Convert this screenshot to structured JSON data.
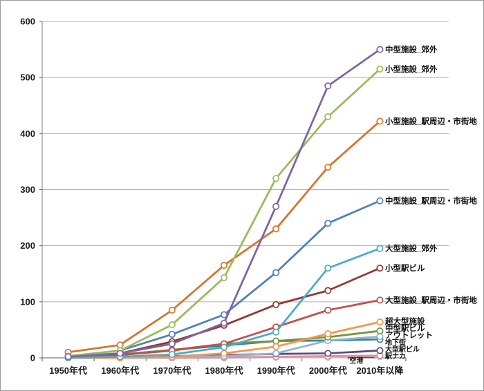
{
  "chart_data": {
    "type": "line",
    "title": "",
    "xlabel": "",
    "ylabel": "",
    "categories": [
      "1950年代",
      "1960年代",
      "1970年代",
      "1980年代",
      "1990年代",
      "2000年代",
      "2010年以降"
    ],
    "y_axis": {
      "min": 0,
      "max": 600,
      "tick_interval": 100,
      "ticks": [
        "0",
        "100",
        "200",
        "300",
        "400",
        "500",
        "600"
      ]
    },
    "grid": true,
    "legend_position": "labels-at-line-ends-right",
    "marker_style": "open-circle",
    "series": [
      {
        "name": "中型施設_郊外",
        "color": "#8064A2",
        "values": [
          2,
          8,
          25,
          62,
          270,
          485,
          550
        ]
      },
      {
        "name": "小型施設_郊外",
        "color": "#9BBB59",
        "values": [
          3,
          13,
          59,
          143,
          320,
          430,
          515
        ]
      },
      {
        "name": "小型施設_駅周辺・市街地",
        "color": "#D4752E",
        "values": [
          10,
          23,
          85,
          165,
          230,
          340,
          422
        ]
      },
      {
        "name": "中型施設_駅周辺・市街地",
        "color": "#4F81BD",
        "values": [
          3,
          13,
          42,
          77,
          152,
          240,
          280
        ]
      },
      {
        "name": "大型施設_郊外",
        "color": "#4BACC6",
        "values": [
          0,
          2,
          6,
          19,
          46,
          160,
          195
        ]
      },
      {
        "name": "小型駅ビル",
        "color": "#943634",
        "values": [
          2,
          8,
          29,
          58,
          95,
          120,
          160
        ]
      },
      {
        "name": "大型施設_駅周辺・市街地",
        "color": "#C0504D",
        "values": [
          1,
          5,
          13,
          25,
          55,
          85,
          103
        ]
      },
      {
        "name": "超大型施設",
        "color": "#F79646",
        "values": [
          0,
          0,
          2,
          8,
          20,
          43,
          64
        ]
      },
      {
        "name": "中型駅ビル",
        "color": "#77933C",
        "values": [
          2,
          6,
          14,
          25,
          30,
          37,
          48
        ]
      },
      {
        "name": "アウトレット",
        "color": "#95B3D7",
        "values": [
          0,
          0,
          1,
          3,
          8,
          31,
          38
        ]
      },
      {
        "name": "地下街",
        "color": "#31849B",
        "values": [
          1,
          6,
          14,
          22,
          30,
          31,
          33
        ],
        "label_small": true
      },
      {
        "name": "大型駅ビル",
        "color": "#604A7B",
        "values": [
          0,
          1,
          3,
          5,
          7,
          8,
          13
        ],
        "label_small": true
      },
      {
        "name": "駅ナカ",
        "color": "#D99694",
        "values": [
          0,
          0,
          0,
          1,
          2,
          3,
          4
        ],
        "label_small": true
      },
      {
        "name": "空港",
        "color": "#C9B9D2",
        "values": [
          0,
          0,
          0,
          0,
          1,
          1,
          2
        ],
        "label_small": true,
        "label_placement": "left-of-end"
      }
    ]
  }
}
